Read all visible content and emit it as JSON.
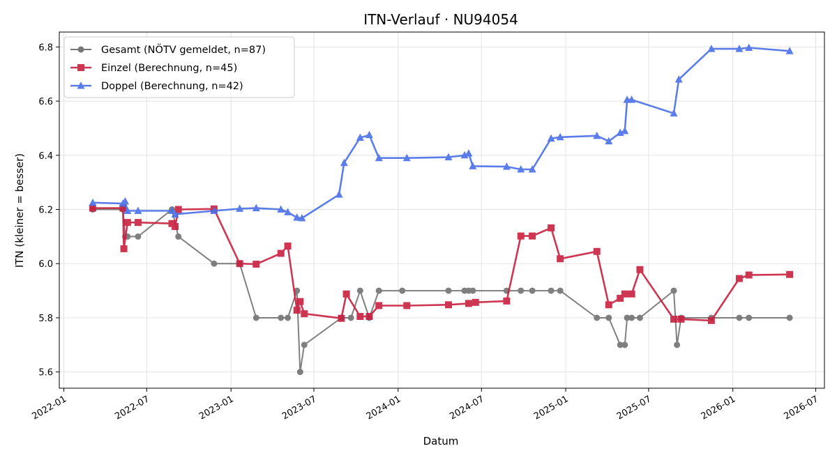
{
  "chart_data": {
    "type": "line",
    "title": "ITN-Verlauf · NU94054",
    "xlabel": "Datum",
    "ylabel": "ITN  (kleiner = besser)",
    "xlim": [
      "2021-12-22",
      "2026-07-20"
    ],
    "ylim": [
      5.54,
      6.855
    ],
    "x_ticks": [
      "2022-01",
      "2022-07",
      "2023-01",
      "2023-07",
      "2024-01",
      "2024-07",
      "2025-01",
      "2025-07",
      "2026-01",
      "2026-07"
    ],
    "y_ticks": [
      "5.6",
      "5.8",
      "6.0",
      "6.2",
      "6.4",
      "6.6",
      "6.8"
    ],
    "grid": true,
    "legend_position": "top-left",
    "series": [
      {
        "name": "Gesamt (NÖTV gemeldet, n=87)",
        "color": "#555555",
        "marker": "circle",
        "points": [
          [
            "2022-03-05",
            6.2
          ],
          [
            "2022-05-10",
            6.2
          ],
          [
            "2022-05-15",
            6.1
          ],
          [
            "2022-05-20",
            6.1
          ],
          [
            "2022-06-12",
            6.1
          ],
          [
            "2022-08-25",
            6.2
          ],
          [
            "2022-09-08",
            6.1
          ],
          [
            "2022-11-25",
            6.0
          ],
          [
            "2023-01-20",
            6.0
          ],
          [
            "2023-02-25",
            5.8
          ],
          [
            "2023-04-20",
            5.8
          ],
          [
            "2023-05-05",
            5.8
          ],
          [
            "2023-05-25",
            5.9
          ],
          [
            "2023-06-01",
            5.6
          ],
          [
            "2023-06-10",
            5.7
          ],
          [
            "2023-08-30",
            5.8
          ],
          [
            "2023-09-20",
            5.8
          ],
          [
            "2023-10-10",
            5.9
          ],
          [
            "2023-10-30",
            5.8
          ],
          [
            "2023-11-20",
            5.9
          ],
          [
            "2024-01-10",
            5.9
          ],
          [
            "2024-04-20",
            5.9
          ],
          [
            "2024-05-25",
            5.9
          ],
          [
            "2024-06-03",
            5.9
          ],
          [
            "2024-06-12",
            5.9
          ],
          [
            "2024-08-25",
            5.9
          ],
          [
            "2024-09-25",
            5.9
          ],
          [
            "2024-10-20",
            5.9
          ],
          [
            "2024-11-30",
            5.9
          ],
          [
            "2024-12-20",
            5.9
          ],
          [
            "2025-03-10",
            5.8
          ],
          [
            "2025-04-05",
            5.8
          ],
          [
            "2025-04-30",
            5.7
          ],
          [
            "2025-05-10",
            5.7
          ],
          [
            "2025-05-15",
            5.8
          ],
          [
            "2025-05-25",
            5.8
          ],
          [
            "2025-06-12",
            5.8
          ],
          [
            "2025-08-25",
            5.9
          ],
          [
            "2025-09-01",
            5.7
          ],
          [
            "2025-09-10",
            5.8
          ],
          [
            "2025-11-15",
            5.8
          ],
          [
            "2026-01-15",
            5.8
          ],
          [
            "2026-02-05",
            5.8
          ],
          [
            "2026-05-05",
            5.8
          ]
        ]
      },
      {
        "name": "Einzel (Berechnung, n=45)",
        "color": "#c8203f",
        "marker": "square",
        "points": [
          [
            "2022-03-05",
            6.205
          ],
          [
            "2022-05-10",
            6.205
          ],
          [
            "2022-05-12",
            6.055
          ],
          [
            "2022-05-20",
            6.152
          ],
          [
            "2022-06-12",
            6.152
          ],
          [
            "2022-08-25",
            6.148
          ],
          [
            "2022-09-01",
            6.137
          ],
          [
            "2022-09-08",
            6.2
          ],
          [
            "2022-11-25",
            6.202
          ],
          [
            "2023-01-20",
            6.0
          ],
          [
            "2023-02-25",
            5.998
          ],
          [
            "2023-04-20",
            6.038
          ],
          [
            "2023-05-05",
            6.065
          ],
          [
            "2023-05-25",
            5.828
          ],
          [
            "2023-06-01",
            5.86
          ],
          [
            "2023-06-10",
            5.815
          ],
          [
            "2023-08-30",
            5.798
          ],
          [
            "2023-09-10",
            5.888
          ],
          [
            "2023-10-10",
            5.805
          ],
          [
            "2023-10-30",
            5.805
          ],
          [
            "2023-11-20",
            5.845
          ],
          [
            "2024-01-20",
            5.845
          ],
          [
            "2024-04-20",
            5.848
          ],
          [
            "2024-06-03",
            5.853
          ],
          [
            "2024-06-18",
            5.857
          ],
          [
            "2024-08-25",
            5.862
          ],
          [
            "2024-09-25",
            6.102
          ],
          [
            "2024-10-20",
            6.102
          ],
          [
            "2024-11-30",
            6.132
          ],
          [
            "2024-12-20",
            6.018
          ],
          [
            "2025-03-10",
            6.045
          ],
          [
            "2025-04-05",
            5.848
          ],
          [
            "2025-04-30",
            5.872
          ],
          [
            "2025-05-10",
            5.888
          ],
          [
            "2025-05-25",
            5.888
          ],
          [
            "2025-06-12",
            5.978
          ],
          [
            "2025-08-25",
            5.795
          ],
          [
            "2025-09-10",
            5.795
          ],
          [
            "2025-11-15",
            5.79
          ],
          [
            "2026-01-15",
            5.945
          ],
          [
            "2026-02-05",
            5.958
          ],
          [
            "2026-05-05",
            5.96
          ]
        ]
      },
      {
        "name": "Doppel (Berechnung, n=42)",
        "color": "#4a6fe8",
        "marker": "triangle",
        "points": [
          [
            "2022-03-05",
            6.225
          ],
          [
            "2022-05-10",
            6.222
          ],
          [
            "2022-05-15",
            6.23
          ],
          [
            "2022-05-20",
            6.195
          ],
          [
            "2022-06-12",
            6.195
          ],
          [
            "2022-08-25",
            6.195
          ],
          [
            "2022-09-01",
            6.182
          ],
          [
            "2022-11-25",
            6.195
          ],
          [
            "2023-01-20",
            6.203
          ],
          [
            "2023-02-25",
            6.205
          ],
          [
            "2023-04-20",
            6.2
          ],
          [
            "2023-05-05",
            6.19
          ],
          [
            "2023-05-25",
            6.17
          ],
          [
            "2023-06-05",
            6.168
          ],
          [
            "2023-08-25",
            6.255
          ],
          [
            "2023-09-05",
            6.372
          ],
          [
            "2023-10-10",
            6.465
          ],
          [
            "2023-10-30",
            6.475
          ],
          [
            "2023-11-20",
            6.39
          ],
          [
            "2024-01-20",
            6.39
          ],
          [
            "2024-04-20",
            6.393
          ],
          [
            "2024-05-25",
            6.4
          ],
          [
            "2024-06-03",
            6.407
          ],
          [
            "2024-06-12",
            6.36
          ],
          [
            "2024-08-25",
            6.358
          ],
          [
            "2024-09-25",
            6.348
          ],
          [
            "2024-10-20",
            6.348
          ],
          [
            "2024-11-30",
            6.462
          ],
          [
            "2024-12-20",
            6.467
          ],
          [
            "2025-03-10",
            6.472
          ],
          [
            "2025-04-05",
            6.452
          ],
          [
            "2025-04-30",
            6.483
          ],
          [
            "2025-05-10",
            6.49
          ],
          [
            "2025-05-15",
            6.605
          ],
          [
            "2025-05-25",
            6.605
          ],
          [
            "2025-08-25",
            6.555
          ],
          [
            "2025-09-05",
            6.68
          ],
          [
            "2025-11-15",
            6.793
          ],
          [
            "2026-01-15",
            6.793
          ],
          [
            "2026-02-05",
            6.797
          ],
          [
            "2026-05-05",
            6.785
          ]
        ]
      }
    ]
  }
}
